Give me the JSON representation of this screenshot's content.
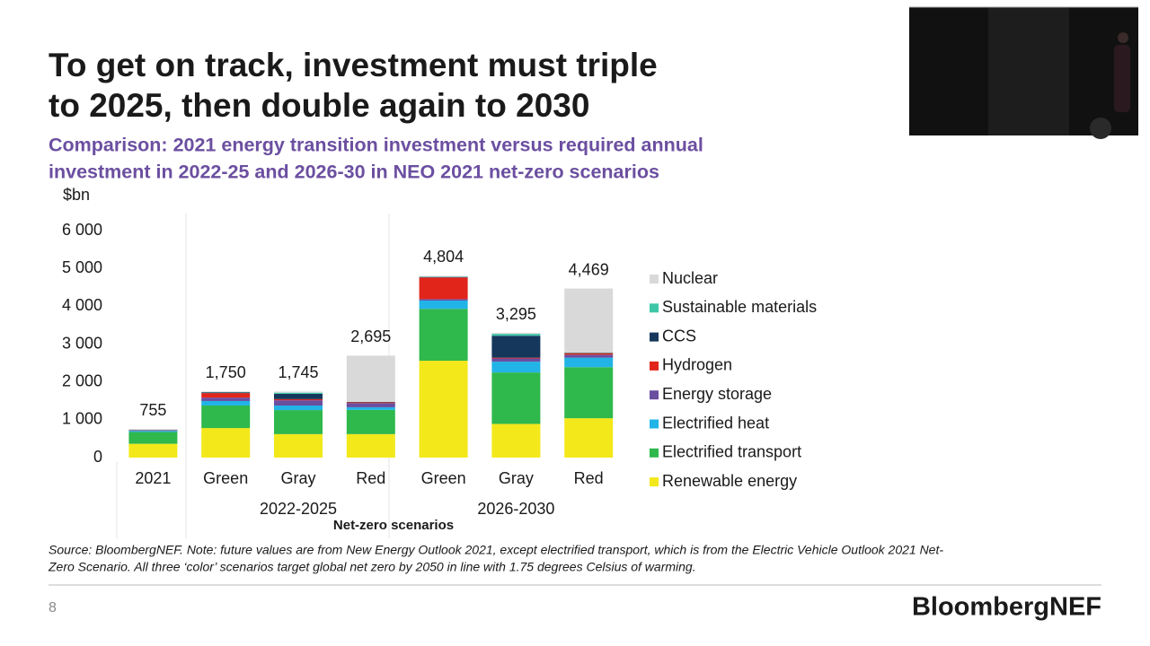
{
  "slide": {
    "title": [
      "To get on track, investment must triple",
      "to 2025, then double again to 2030"
    ],
    "subtitle": [
      "Comparison: 2021 energy transition investment versus required annual",
      "investment in 2022-25 and 2026-30 in NEO 2021 net-zero scenarios"
    ],
    "source": [
      "Source: BloombergNEF. Note: future values are from New Energy Outlook 2021, except electrified transport, which is from the Electric Vehicle Outlook 2021 Net-",
      "Zero Scenario. All three ‘color’ scenarios target global net zero by 2050 in line with 1.75 degrees Celsius of warming."
    ],
    "page_number": "8",
    "logo": "BloombergNEF"
  },
  "chart_data": {
    "type": "stacked_bar",
    "y_label": "$bn",
    "categories": [
      "2021",
      "Green",
      "Gray",
      "Red",
      "Green",
      "Gray",
      "Red"
    ],
    "group_labels": [
      "2022-2025",
      "2026-2030"
    ],
    "group_axis_label": "Net-zero scenarios",
    "ylim": [
      0,
      6000
    ],
    "yticks": [
      0,
      {
        "value": 1000,
        "label": "1 000"
      },
      {
        "value": 2000,
        "label": "2 000"
      },
      {
        "value": 3000,
        "label": "3 000"
      },
      {
        "value": 4000,
        "label": "4 000"
      },
      {
        "value": 5000,
        "label": "5 000"
      },
      {
        "value": 6000,
        "label": "6 000"
      }
    ],
    "series": [
      {
        "name": "Renewable energy",
        "color": "#f3e81a",
        "values": [
          365,
          780,
          620,
          620,
          2560,
          890,
          1040
        ]
      },
      {
        "name": "Electrified transport",
        "color": "#2fb84c",
        "values": [
          310,
          595,
          635,
          640,
          1370,
          1360,
          1350
        ]
      },
      {
        "name": "Electrified heat",
        "color": "#22b4e6",
        "values": [
          30,
          120,
          120,
          70,
          220,
          285,
          250
        ]
      },
      {
        "name": "Energy storage",
        "color": "#6a4ea0",
        "values": [
          10,
          90,
          140,
          110,
          40,
          85,
          80
        ]
      },
      {
        "name": "Hydrogen",
        "color": "#e1251b",
        "values": [
          5,
          120,
          30,
          20,
          570,
          20,
          40
        ]
      },
      {
        "name": "CCS",
        "color": "#15375c",
        "values": [
          10,
          20,
          140,
          10,
          14,
          580,
          10
        ]
      },
      {
        "name": "Sustainable materials",
        "color": "#3ec6a8",
        "values": [
          5,
          10,
          30,
          5,
          10,
          50,
          10
        ]
      },
      {
        "name": "Nuclear",
        "color": "#d9d9d9",
        "values": [
          20,
          15,
          30,
          1220,
          20,
          25,
          1689
        ]
      }
    ],
    "totals": [
      755,
      1750,
      1745,
      2695,
      4804,
      3295,
      4469
    ],
    "total_labels": [
      "755",
      "1,750",
      "1,745",
      "2,695",
      "4,804",
      "3,295",
      "4,469"
    ]
  }
}
